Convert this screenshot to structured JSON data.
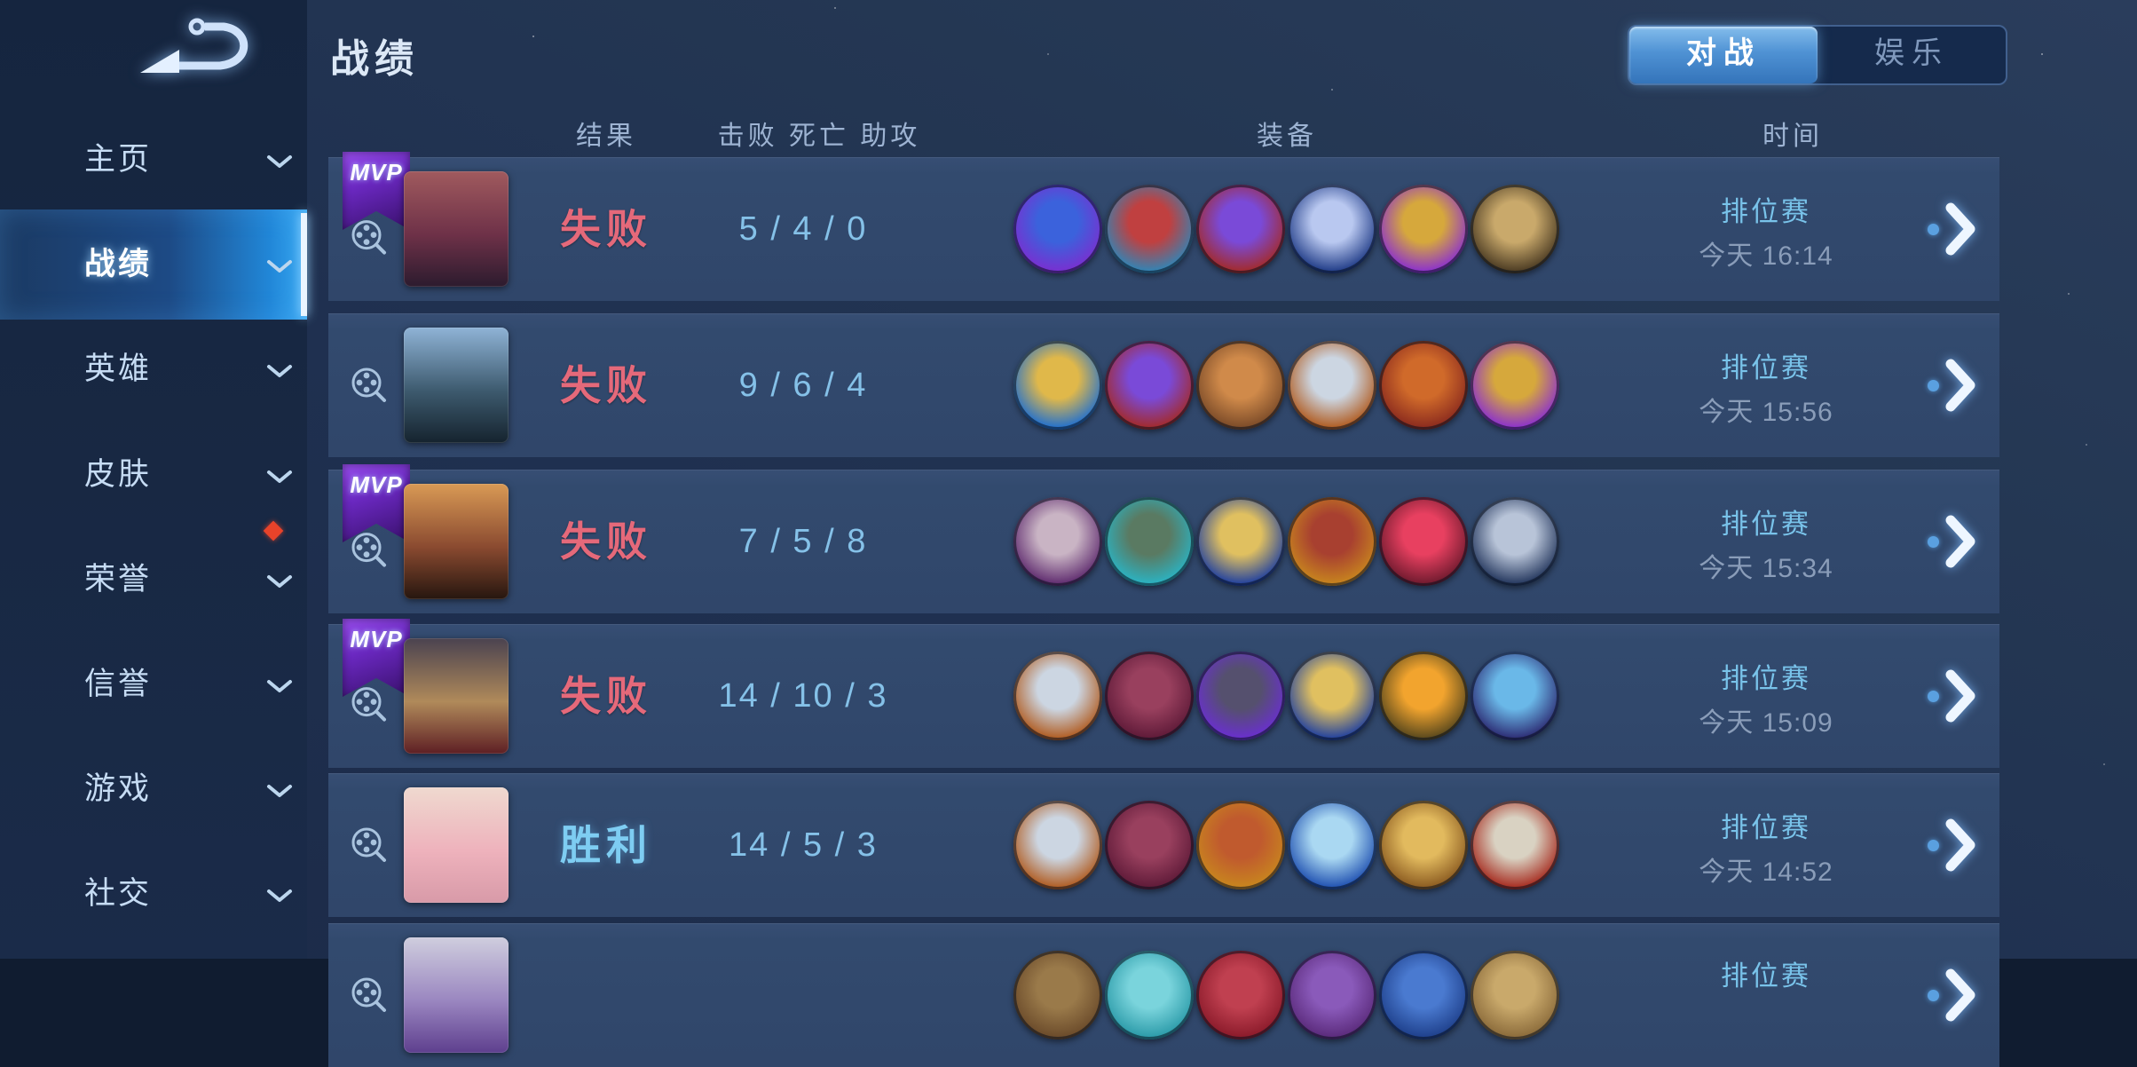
{
  "app": {
    "title": "战绩"
  },
  "tabs": {
    "items": [
      {
        "label": "对战",
        "active": true
      },
      {
        "label": "娱乐",
        "active": false
      }
    ]
  },
  "sidebar": {
    "items": [
      {
        "label": "主页",
        "active": false,
        "chevron": false,
        "badge": false
      },
      {
        "label": "战绩",
        "active": true,
        "chevron": false,
        "badge": false
      },
      {
        "label": "英雄",
        "active": false,
        "chevron": false,
        "badge": false
      },
      {
        "label": "皮肤",
        "active": false,
        "chevron": true,
        "badge": false
      },
      {
        "label": "荣誉",
        "active": false,
        "chevron": true,
        "badge": true
      },
      {
        "label": "信誉",
        "active": false,
        "chevron": true,
        "badge": false
      },
      {
        "label": "游戏",
        "active": false,
        "chevron": true,
        "badge": false
      },
      {
        "label": "社交",
        "active": false,
        "chevron": true,
        "badge": false
      }
    ]
  },
  "columns": {
    "result": "结果",
    "kda": "击败 死亡 助攻",
    "equipment": "装备",
    "time": "时间"
  },
  "icons": {
    "mvp_label": "MVP"
  },
  "colors": {
    "defeat_text": "#e5697a",
    "victory_text": "#7ecdf2",
    "kda_text": "#85c1e8",
    "mode_text": "#79c3ea",
    "time_text": "#8a9db9",
    "tab_active": "#4f92d4",
    "badge_red": "#e8432a",
    "mvp_purple": "#6a28c0"
  },
  "matches": [
    {
      "mvp": true,
      "result": "失败",
      "outcome": "defeat",
      "kda": "5 / 4 / 0",
      "mode": "排位赛",
      "time": "今天 16:14",
      "partial": false,
      "avatar": [
        "#a05a5e",
        "#6e3148",
        "#2c1b2e"
      ],
      "items": [
        [
          "#7a2fd0",
          "#3b62dc"
        ],
        [
          "#2e86b8",
          "#c04040"
        ],
        [
          "#a32a28",
          "#7a4ad8"
        ],
        [
          "#1e3a86",
          "#b9c8f0"
        ],
        [
          "#8a2fd0",
          "#d6a83c"
        ],
        [
          "#4a3a22",
          "#c9a96b"
        ]
      ]
    },
    {
      "mvp": false,
      "result": "失败",
      "outcome": "defeat",
      "kda": "9 / 6 / 4",
      "mode": "排位赛",
      "time": "今天 15:56",
      "partial": false,
      "avatar": [
        "#8fb3d6",
        "#3d5a6e",
        "#15232e"
      ],
      "items": [
        [
          "#1f6fd0",
          "#e0b84a"
        ],
        [
          "#a32a28",
          "#7a4ad8"
        ],
        [
          "#7a4a28",
          "#d08a4a"
        ],
        [
          "#b05a1e",
          "#ccd6e2"
        ],
        [
          "#8a2a1e",
          "#d06a2a"
        ],
        [
          "#8a2fd0",
          "#d6a83c"
        ]
      ]
    },
    {
      "mvp": true,
      "result": "失败",
      "outcome": "defeat",
      "kda": "7 / 5 / 8",
      "mode": "排位赛",
      "time": "今天 15:34",
      "partial": false,
      "avatar": [
        "#d99a55",
        "#8a4a30",
        "#26160f"
      ],
      "items": [
        [
          "#5e2a6e",
          "#c9b4c4"
        ],
        [
          "#2ab4c4",
          "#5a7a62"
        ],
        [
          "#1e3fa0",
          "#e0c060"
        ],
        [
          "#c8861e",
          "#a84030"
        ],
        [
          "#6e1a2e",
          "#e84060"
        ],
        [
          "#22355c",
          "#b8c4d8"
        ]
      ]
    },
    {
      "mvp": true,
      "result": "失败",
      "outcome": "defeat",
      "kda": "14 / 10 / 3",
      "mode": "排位赛",
      "time": "今天 15:09",
      "partial": false,
      "avatar": [
        "#4a4250",
        "#b08a5a",
        "#5e1f24"
      ],
      "items": [
        [
          "#b05a1e",
          "#ccd6e2"
        ],
        [
          "#5e1a38",
          "#99405e"
        ],
        [
          "#6a2fd0",
          "#55506e"
        ],
        [
          "#1e3fa0",
          "#e0c060"
        ],
        [
          "#57471d",
          "#f2a42e"
        ],
        [
          "#2c2a72",
          "#6ab8e8"
        ]
      ]
    },
    {
      "mvp": false,
      "result": "胜利",
      "outcome": "victory",
      "kda": "14 / 5 / 3",
      "mode": "排位赛",
      "time": "今天 14:52",
      "partial": false,
      "avatar": [
        "#efd9cf",
        "#eeb2bc",
        "#d89aa8"
      ],
      "items": [
        [
          "#b05a1e",
          "#ccd6e2"
        ],
        [
          "#5e1a38",
          "#99405e"
        ],
        [
          "#c8861e",
          "#c05a2e"
        ],
        [
          "#1e4fb0",
          "#aad8f2"
        ],
        [
          "#8a5a20",
          "#e2ba5e"
        ],
        [
          "#a62a1e",
          "#d9d2c2"
        ]
      ]
    },
    {
      "mvp": false,
      "result": "",
      "outcome": "defeat",
      "kda": "",
      "mode": "排位赛",
      "time": "",
      "partial": true,
      "avatar": [
        "#cfcede",
        "#9a86c0",
        "#5e3f8e"
      ],
      "items": [
        [
          "#6a4a2a",
          "#9a7a4a"
        ],
        [
          "#2a9aa8",
          "#7ad4dc"
        ],
        [
          "#8a1a2a",
          "#c04050"
        ],
        [
          "#5a2a7a",
          "#8a5aba"
        ],
        [
          "#1e3f8a",
          "#4a7ad0"
        ],
        [
          "#8a6a3a",
          "#c9a96b"
        ]
      ]
    }
  ]
}
